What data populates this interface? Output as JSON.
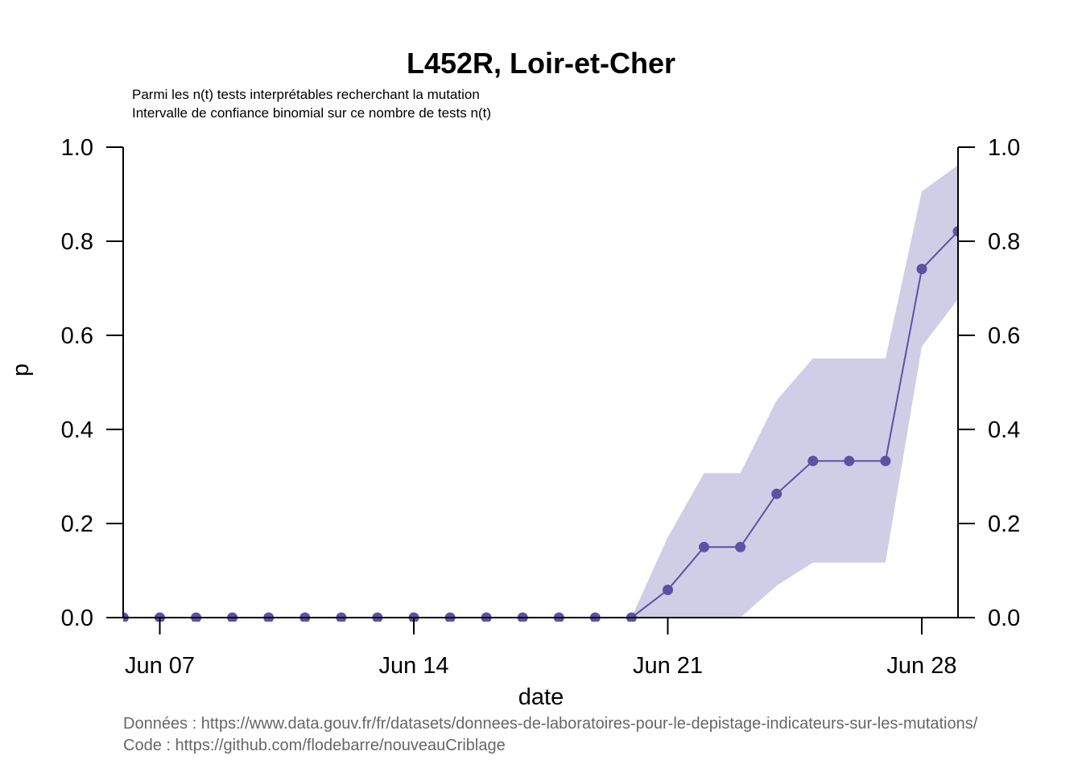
{
  "chart_data": {
    "type": "line",
    "title": "L452R, Loir-et-Cher",
    "subtitle_lines": [
      "Parmi les n(t) tests interprétables recherchant la mutation",
      "Intervalle de confiance binomial sur ce nombre de tests n(t)"
    ],
    "xlabel": "date",
    "ylabel": "p",
    "ylim": [
      0,
      1
    ],
    "yticks": [
      "0.0",
      "0.2",
      "0.4",
      "0.6",
      "0.8",
      "1.0"
    ],
    "xticks": [
      {
        "date": "2021-06-07",
        "label": "Jun 07"
      },
      {
        "date": "2021-06-14",
        "label": "Jun 14"
      },
      {
        "date": "2021-06-21",
        "label": "Jun 21"
      },
      {
        "date": "2021-06-28",
        "label": "Jun 28"
      }
    ],
    "x": [
      "2021-06-06",
      "2021-06-07",
      "2021-06-08",
      "2021-06-09",
      "2021-06-10",
      "2021-06-11",
      "2021-06-12",
      "2021-06-13",
      "2021-06-14",
      "2021-06-15",
      "2021-06-16",
      "2021-06-17",
      "2021-06-18",
      "2021-06-19",
      "2021-06-20",
      "2021-06-21",
      "2021-06-22",
      "2021-06-23",
      "2021-06-24",
      "2021-06-25",
      "2021-06-26",
      "2021-06-27",
      "2021-06-28",
      "2021-06-29"
    ],
    "series": [
      {
        "values": [
          0,
          0,
          0,
          0,
          0,
          0,
          0,
          0,
          0,
          0,
          0,
          0,
          0,
          0,
          0,
          0.059,
          0.15,
          0.15,
          0.263,
          0.333,
          0.333,
          0.333,
          0.741,
          0.821
        ],
        "ci_low": [
          0,
          0,
          0,
          0,
          0,
          0,
          0,
          0,
          0,
          0,
          0,
          0,
          0,
          0,
          0,
          0,
          0,
          0,
          0.068,
          0.117,
          0.117,
          0.117,
          0.576,
          0.677
        ],
        "ci_high": [
          0,
          0,
          0,
          0,
          0,
          0,
          0,
          0,
          0,
          0,
          0,
          0,
          0,
          0,
          0,
          0.171,
          0.307,
          0.307,
          0.462,
          0.551,
          0.551,
          0.551,
          0.906,
          0.962
        ]
      }
    ],
    "colors": {
      "line": "#5b52a3",
      "band": "#d0cee6"
    },
    "grid": false,
    "right_axis": true
  },
  "caption": {
    "data_line": "Données : https://www.data.gouv.fr/fr/datasets/donnees-de-laboratoires-pour-le-depistage-indicateurs-sur-les-mutations/",
    "code_line": "Code : https://github.com/flodebarre/nouveauCriblage"
  }
}
